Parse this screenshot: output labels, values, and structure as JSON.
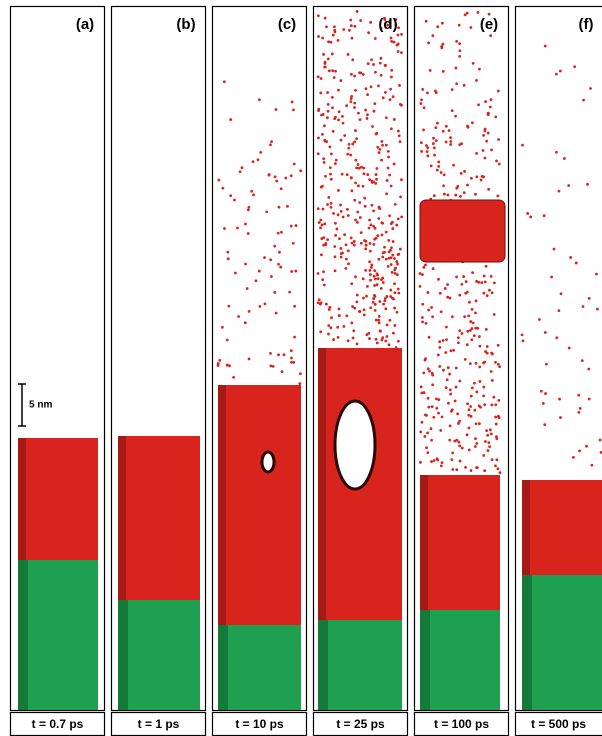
{
  "panels": [
    {
      "label": "(a)",
      "time": "t = 0.7 ps"
    },
    {
      "label": "(b)",
      "time": "t = 1 ps"
    },
    {
      "label": "(c)",
      "time": "t = 10 ps"
    },
    {
      "label": "(d)",
      "time": "t = 25 ps"
    },
    {
      "label": "(e)",
      "time": "t = 100 ps"
    },
    {
      "label": "(f)",
      "time": "t = 500 ps"
    }
  ],
  "scale_bar": "5 nm"
}
